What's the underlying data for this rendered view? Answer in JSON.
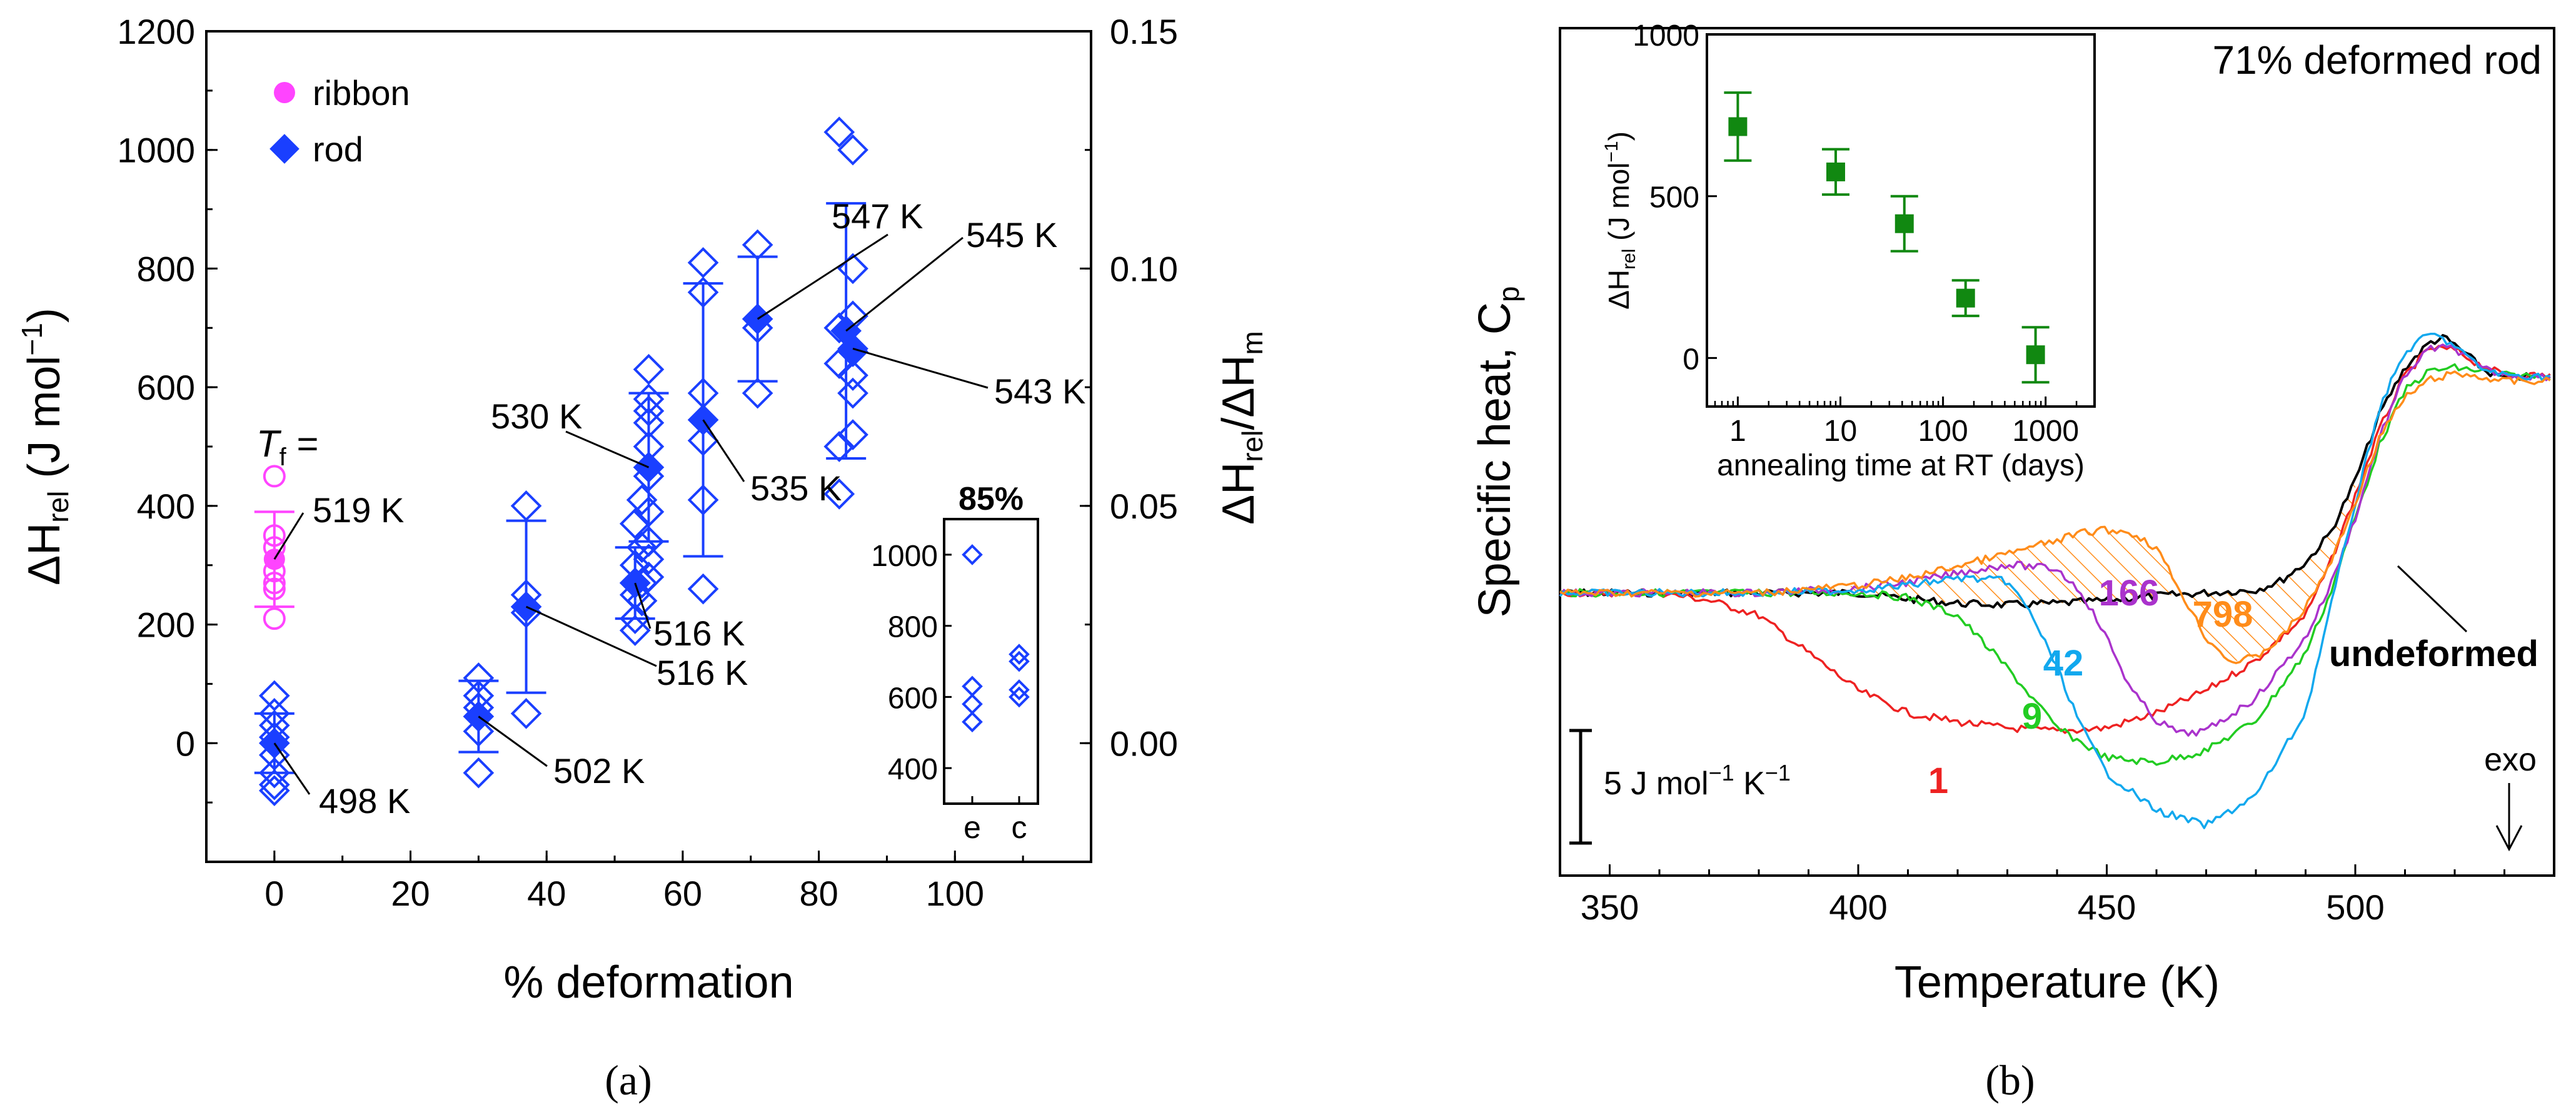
{
  "chart_data": [
    {
      "panel": "a",
      "panel_label": "(a)",
      "type": "scatter",
      "xlabel": "% deformation",
      "ylabel_main": "ΔH",
      "ylabel_sub": "rel",
      "ylabel_unit_pre": " (J mol",
      "ylabel_unit_sup": "−1",
      "ylabel_unit_post": ")",
      "y2label_a": "ΔH",
      "y2label_a_sub": "rel",
      "y2label_b": "/ΔH",
      "y2label_b_sub": "m",
      "xlim": [
        -10,
        120
      ],
      "ylim": [
        -200,
        1200
      ],
      "xticks": [
        "0",
        "20",
        "40",
        "60",
        "80",
        "100"
      ],
      "xtick_values": [
        0,
        20,
        40,
        60,
        80,
        100
      ],
      "yticks": [
        "0",
        "200",
        "400",
        "600",
        "800",
        "1000",
        "1200"
      ],
      "ytick_values": [
        0,
        200,
        400,
        600,
        800,
        1000,
        1200
      ],
      "y2lim": [
        -0.025,
        0.15
      ],
      "y2ticks": [
        "0.00",
        "0.05",
        "0.10",
        "0.15"
      ],
      "y2tick_values": [
        0,
        0.05,
        0.1,
        0.15
      ],
      "legend": [
        {
          "label": "ribbon",
          "marker": "circle",
          "color": "#ff44ff"
        },
        {
          "label": "rod",
          "marker": "diamond",
          "color": "#1a3fff"
        }
      ],
      "tf_label": "T",
      "tf_sub": "f",
      "tf_suffix": " =",
      "series": [
        {
          "name": "ribbon individual",
          "marker": "circle-open",
          "color": "#ff44ff",
          "points": [
            [
              0,
              450
            ],
            [
              0,
              350
            ],
            [
              0,
              330
            ],
            [
              0,
              290
            ],
            [
              0,
              270
            ],
            [
              0,
              260
            ],
            [
              0,
              210
            ]
          ]
        },
        {
          "name": "ribbon mean",
          "marker": "circle-filled",
          "color": "#ff44ff",
          "points": [
            [
              0,
              310
            ]
          ],
          "yerr": [
            80
          ]
        },
        {
          "name": "rod individual",
          "marker": "diamond-open",
          "color": "#1a3fff",
          "points": [
            [
              0,
              80
            ],
            [
              0,
              50
            ],
            [
              0,
              30
            ],
            [
              0,
              10
            ],
            [
              0,
              -20
            ],
            [
              0,
              -50
            ],
            [
              0,
              -70
            ],
            [
              0,
              -80
            ],
            [
              30,
              110
            ],
            [
              30,
              80
            ],
            [
              30,
              60
            ],
            [
              30,
              20
            ],
            [
              30,
              -50
            ],
            [
              37,
              400
            ],
            [
              37,
              250
            ],
            [
              37,
              220
            ],
            [
              37,
              50
            ],
            [
              53,
              370
            ],
            [
              53,
              300
            ],
            [
              53,
              270
            ],
            [
              53,
              250
            ],
            [
              53,
              210
            ],
            [
              53,
              190
            ],
            [
              54,
              410
            ],
            [
              54,
              330
            ],
            [
              54,
              270
            ],
            [
              54,
              240
            ],
            [
              55,
              500
            ],
            [
              55,
              630
            ],
            [
              55,
              580
            ],
            [
              55,
              560
            ],
            [
              55,
              540
            ],
            [
              55,
              450
            ],
            [
              55,
              390
            ],
            [
              55,
              340
            ],
            [
              55,
              310
            ],
            [
              55,
              280
            ],
            [
              63,
              810
            ],
            [
              63,
              760
            ],
            [
              63,
              590
            ],
            [
              63,
              510
            ],
            [
              63,
              410
            ],
            [
              63,
              260
            ],
            [
              71,
              840
            ],
            [
              71,
              700
            ],
            [
              71,
              590
            ],
            [
              83,
              1030
            ],
            [
              83,
              700
            ],
            [
              83,
              640
            ],
            [
              83,
              500
            ],
            [
              83,
              420
            ],
            [
              85,
              1000
            ],
            [
              85,
              800
            ],
            [
              85,
              720
            ],
            [
              85,
              660
            ],
            [
              85,
              620
            ],
            [
              85,
              590
            ],
            [
              85,
              520
            ]
          ]
        },
        {
          "name": "rod mean",
          "marker": "diamond-filled",
          "color": "#1a3fff",
          "points": [
            [
              0,
              0
            ],
            [
              30,
              45
            ],
            [
              37,
              230
            ],
            [
              53,
              270
            ],
            [
              55,
              465
            ],
            [
              63,
              545
            ],
            [
              71,
              715
            ],
            [
              84,
              695
            ],
            [
              85,
              665
            ]
          ],
          "yerr": [
            50,
            60,
            145,
            60,
            125,
            230,
            105,
            215,
            0
          ]
        }
      ],
      "annotations": [
        "519 K",
        "498 K",
        "502 K",
        "516 K",
        "516 K",
        "530 K",
        "535 K",
        "547 K",
        "545 K",
        "543 K"
      ],
      "inset": {
        "title": "85%",
        "ylim": [
          300,
          1100
        ],
        "yticks": [
          "400",
          "600",
          "800",
          "1000"
        ],
        "ytick_values": [
          400,
          600,
          800,
          1000
        ],
        "categories": [
          "e",
          "c"
        ],
        "points_e": [
          1000,
          630,
          580,
          530
        ],
        "points_c": [
          720,
          700,
          620,
          600
        ]
      }
    },
    {
      "panel": "b",
      "panel_label": "(b)",
      "type": "line",
      "title": "71% deformed rod",
      "xlabel": "Temperature (K)",
      "ylabel": "Specific heat, C",
      "ylabel_sub": "p",
      "xlim": [
        340,
        540
      ],
      "xticks": [
        "350",
        "400",
        "450",
        "500"
      ],
      "xtick_values": [
        350,
        400,
        450,
        500
      ],
      "scale_bar_value": "5 J mol",
      "scale_bar_sup1": "−1",
      "scale_bar_mid": " K",
      "scale_bar_sup2": "−1",
      "exo_label": "exo",
      "series": [
        {
          "name": "undeformed",
          "color": "#000000",
          "label_bold": true,
          "x": [
            340,
            360,
            380,
            400,
            410,
            420,
            430,
            440,
            450,
            460,
            470,
            480,
            485,
            490,
            495,
            500,
            505,
            510,
            515,
            518,
            522,
            526,
            530,
            535,
            540
          ],
          "y": [
            0,
            0,
            0,
            0,
            -0.4,
            -0.7,
            -0.8,
            -0.7,
            -0.5,
            -0.2,
            0,
            0.2,
            0.8,
            2.0,
            4.0,
            7.5,
            12.0,
            15.0,
            16.7,
            17.0,
            16.0,
            14.8,
            14.3,
            14.4,
            14.4
          ]
        },
        {
          "name": "1",
          "color": "#ee2222",
          "x": [
            340,
            350,
            360,
            370,
            380,
            390,
            400,
            410,
            420,
            430,
            440,
            450,
            460,
            470,
            480,
            490,
            495,
            500,
            505,
            510,
            515,
            520,
            525,
            530,
            540
          ],
          "y": [
            0,
            0,
            0,
            -0.5,
            -1.5,
            -4.0,
            -6.5,
            -8.0,
            -8.6,
            -9.0,
            -9.2,
            -9.0,
            -8.0,
            -6.5,
            -4.5,
            -1.5,
            2.0,
            6.5,
            11.0,
            14.5,
            16.3,
            16.2,
            15.2,
            14.5,
            14.5
          ]
        },
        {
          "name": "9",
          "color": "#22cc22",
          "x": [
            340,
            350,
            360,
            380,
            400,
            410,
            420,
            430,
            440,
            450,
            460,
            470,
            480,
            490,
            495,
            500,
            505,
            510,
            515,
            520,
            525,
            530,
            540
          ],
          "y": [
            0,
            0,
            0,
            0,
            0,
            -0.3,
            -1.5,
            -5.0,
            -9.0,
            -11.0,
            -11.3,
            -10.5,
            -8.5,
            -4.0,
            0,
            5.0,
            10.0,
            13.5,
            14.8,
            15.0,
            14.8,
            14.5,
            14.4
          ]
        },
        {
          "name": "42",
          "color": "#11a8ee",
          "x": [
            340,
            350,
            360,
            380,
            400,
            410,
            420,
            430,
            435,
            440,
            445,
            450,
            460,
            470,
            480,
            490,
            495,
            500,
            505,
            510,
            515,
            520,
            525,
            530,
            540
          ],
          "y": [
            0,
            0,
            0,
            0,
            0.2,
            0.5,
            1.0,
            0.8,
            -1.5,
            -5.0,
            -9.0,
            -12.0,
            -14.5,
            -15.5,
            -13.5,
            -8.0,
            -1.0,
            6.0,
            12.5,
            16.0,
            17.3,
            16.5,
            15.0,
            14.5,
            14.4
          ]
        },
        {
          "name": "166",
          "color": "#aa33cc",
          "x": [
            340,
            350,
            360,
            380,
            400,
            410,
            420,
            430,
            440,
            445,
            450,
            455,
            460,
            465,
            470,
            480,
            490,
            495,
            500,
            505,
            510,
            515,
            520,
            525,
            530,
            540
          ],
          "y": [
            0,
            0,
            0,
            0,
            0.3,
            0.7,
            1.3,
            1.9,
            1.6,
            0,
            -3.0,
            -6.5,
            -8.5,
            -9.4,
            -9.2,
            -7.0,
            -3.0,
            0.5,
            5.0,
            10.5,
            14.5,
            16.3,
            16.3,
            15.0,
            14.5,
            14.4
          ]
        },
        {
          "name": "798",
          "color": "#ff8c1a",
          "x": [
            340,
            350,
            360,
            380,
            400,
            410,
            420,
            430,
            440,
            445,
            450,
            455,
            460,
            465,
            470,
            475,
            480,
            485,
            490,
            495,
            500,
            505,
            510,
            515,
            520,
            525,
            530,
            540
          ],
          "y": [
            0,
            0,
            0,
            0,
            0.5,
            1.0,
            1.8,
            2.6,
            3.5,
            4.0,
            4.2,
            4.0,
            3.0,
            0,
            -3.0,
            -4.6,
            -4.3,
            -3.0,
            -1.0,
            2.0,
            6.0,
            10.5,
            13.0,
            14.2,
            14.6,
            14.4,
            14.1,
            14.1
          ]
        }
      ],
      "hatched_regions": [
        "between 798 and undeformed"
      ],
      "inset": {
        "type": "scatter",
        "xlabel": "annealing time at RT (days)",
        "ylabel": "ΔH",
        "ylabel_sub": "rel",
        "ylabel_unit_pre": " (J mol",
        "ylabel_unit_sup": "−1",
        "ylabel_unit_post": ")",
        "xscale": "log",
        "xlim": [
          0.5,
          3000
        ],
        "ylim": [
          -150,
          1000
        ],
        "xticks": [
          "1",
          "10",
          "100",
          "1000"
        ],
        "xtick_values": [
          1,
          10,
          100,
          1000
        ],
        "yticks": [
          "0",
          "500",
          "1000"
        ],
        "ytick_values": [
          0,
          500,
          1000
        ],
        "color": "#118811",
        "x": [
          1,
          9,
          42,
          166,
          798
        ],
        "y": [
          715,
          575,
          415,
          185,
          10
        ],
        "yerr": [
          105,
          70,
          85,
          55,
          85
        ]
      }
    }
  ]
}
